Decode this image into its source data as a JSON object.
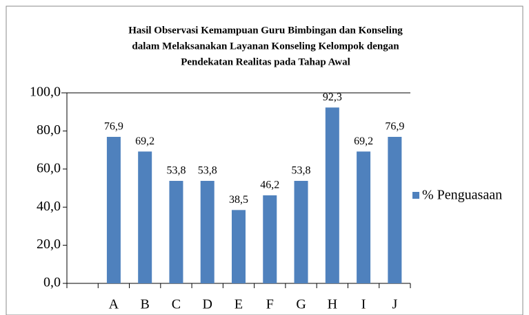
{
  "chart_data": {
    "type": "bar",
    "title": [
      "Hasil Observasi Kemampuan Guru Bimbingan dan Konseling",
      "dalam Melaksanakan Layanan Konseling Kelompok dengan",
      "Pendekatan Realitas pada Tahap Awal"
    ],
    "categories": [
      null,
      "A",
      "B",
      "C",
      "D",
      "E",
      "F",
      "G",
      "H",
      "I",
      "J"
    ],
    "series": [
      {
        "name": "% Penguasaan",
        "color": "#4f81bd",
        "values": [
          null,
          76.9,
          69.2,
          53.8,
          53.8,
          38.5,
          46.2,
          53.8,
          92.3,
          69.2,
          76.9
        ],
        "value_labels": [
          null,
          "76,9",
          "69,2",
          "53,8",
          "53,8",
          "38,5",
          "46,2",
          "53,8",
          "92,3",
          "69,2",
          "76,9"
        ]
      }
    ],
    "ylim": [
      0,
      100
    ],
    "yticks": [
      {
        "value": 0,
        "label": "0,0"
      },
      {
        "value": 20,
        "label": "20,0"
      },
      {
        "value": 40,
        "label": "40,0"
      },
      {
        "value": 60,
        "label": "60,0"
      },
      {
        "value": 80,
        "label": "80,0"
      },
      {
        "value": 100,
        "label": "100,0"
      }
    ],
    "legend": "right"
  }
}
